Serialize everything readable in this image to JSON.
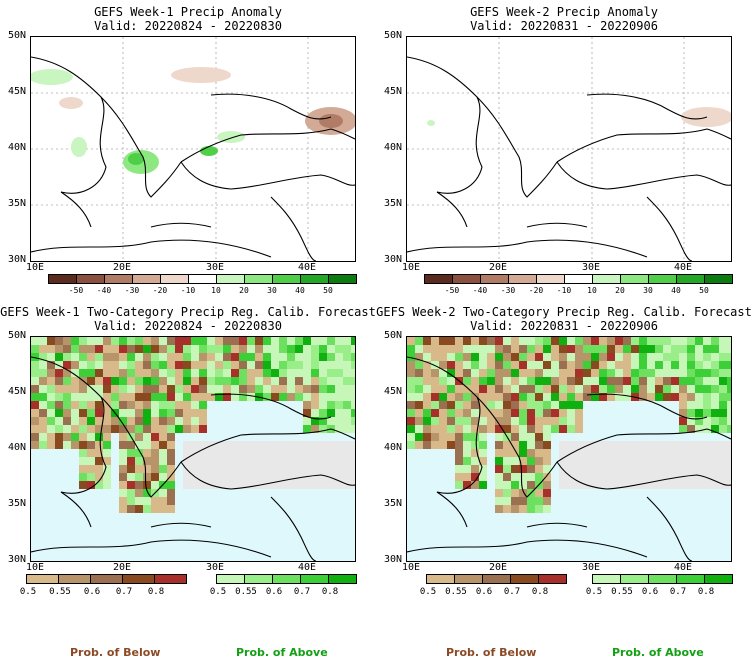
{
  "chart_data": [
    {
      "type": "heatmap",
      "title": "GEFS Week-1 Precip Anomaly",
      "subtitle": "Valid: 20220824 - 20220830",
      "y_ticks": [
        "50N",
        "45N",
        "40N",
        "35N",
        "30N"
      ],
      "x_ticks": [
        "10E",
        "20E",
        "30E",
        "40E"
      ],
      "colorbar": {
        "labels": [
          "-50",
          "-40",
          "-30",
          "-20",
          "-10",
          "10",
          "20",
          "30",
          "40",
          "50"
        ],
        "colors": [
          "#5c2b1f",
          "#8a5040",
          "#b07c66",
          "#d2aa96",
          "#eed8cc",
          "#ffffff",
          "#c8f5c0",
          "#8ee882",
          "#4fcf48",
          "#22a824",
          "#0a7c10"
        ]
      }
    },
    {
      "type": "heatmap",
      "title": "GEFS Week-2 Precip Anomaly",
      "subtitle": "Valid: 20220831 - 20220906",
      "y_ticks": [
        "50N",
        "45N",
        "40N",
        "35N",
        "30N"
      ],
      "x_ticks": [
        "10E",
        "20E",
        "30E",
        "40E"
      ],
      "colorbar": {
        "labels": [
          "-50",
          "-40",
          "-30",
          "-20",
          "-10",
          "10",
          "20",
          "30",
          "40",
          "50"
        ],
        "colors": [
          "#5c2b1f",
          "#8a5040",
          "#b07c66",
          "#d2aa96",
          "#eed8cc",
          "#ffffff",
          "#c8f5c0",
          "#8ee882",
          "#4fcf48",
          "#22a824",
          "#0a7c10"
        ]
      }
    },
    {
      "type": "heatmap",
      "title": "GEFS Week-1 Two-Category Precip Reg. Calib. Forecast",
      "subtitle": "Valid: 20220824 - 20220830",
      "y_ticks": [
        "50N",
        "45N",
        "40N",
        "35N",
        "30N"
      ],
      "x_ticks": [
        "10E",
        "20E",
        "30E",
        "40E"
      ],
      "below_colorbar": {
        "labels": [
          "0.5",
          "0.55",
          "0.6",
          "0.7",
          "0.8"
        ],
        "colors": [
          "#d7b98a",
          "#b8946a",
          "#9a7050",
          "#8a4a20",
          "#a8302a"
        ]
      },
      "above_colorbar": {
        "labels": [
          "0.5",
          "0.55",
          "0.6",
          "0.7",
          "0.8"
        ],
        "colors": [
          "#c6f7b8",
          "#9aee8a",
          "#6ee060",
          "#3ccf38",
          "#10b010"
        ]
      }
    },
    {
      "type": "heatmap",
      "title": "GEFS Week-2 Two-Category Precip Reg. Calib. Forecast",
      "subtitle": "Valid: 20220831 - 20220906",
      "y_ticks": [
        "50N",
        "45N",
        "40N",
        "35N",
        "30N"
      ],
      "x_ticks": [
        "10E",
        "20E",
        "30E",
        "40E"
      ],
      "below_colorbar": {
        "labels": [
          "0.5",
          "0.55",
          "0.6",
          "0.7",
          "0.8"
        ],
        "colors": [
          "#d7b98a",
          "#b8946a",
          "#9a7050",
          "#8a4a20",
          "#a8302a"
        ]
      },
      "above_colorbar": {
        "labels": [
          "0.5",
          "0.55",
          "0.6",
          "0.7",
          "0.8"
        ],
        "colors": [
          "#c6f7b8",
          "#9aee8a",
          "#6ee060",
          "#3ccf38",
          "#10b010"
        ]
      }
    }
  ],
  "footer": {
    "below_label": "Prob. of Below",
    "above_label": "Prob. of Above",
    "below_color": "#8b4a25",
    "above_color": "#13a013"
  },
  "sea_color": "#dff8fb",
  "no_data_color": "#e8e8e8"
}
